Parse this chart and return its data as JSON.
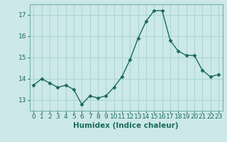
{
  "x": [
    0,
    1,
    2,
    3,
    4,
    5,
    6,
    7,
    8,
    9,
    10,
    11,
    12,
    13,
    14,
    15,
    16,
    17,
    18,
    19,
    20,
    21,
    22,
    23
  ],
  "y": [
    13.7,
    14.0,
    13.8,
    13.6,
    13.7,
    13.5,
    12.8,
    13.2,
    13.1,
    13.2,
    13.6,
    14.1,
    14.9,
    15.9,
    16.7,
    17.2,
    17.2,
    15.8,
    15.3,
    15.1,
    15.1,
    14.4,
    14.1,
    14.2
  ],
  "line_color": "#1a6b5a",
  "marker": "D",
  "marker_size": 2.5,
  "bg_color": "#cce8e8",
  "grid_color": "#aad4d4",
  "xlabel": "Humidex (Indice chaleur)",
  "ylim": [
    12.5,
    17.5
  ],
  "xlim": [
    -0.5,
    23.5
  ],
  "yticks": [
    13,
    14,
    15,
    16,
    17
  ],
  "xticks": [
    0,
    1,
    2,
    3,
    4,
    5,
    6,
    7,
    8,
    9,
    10,
    11,
    12,
    13,
    14,
    15,
    16,
    17,
    18,
    19,
    20,
    21,
    22,
    23
  ],
  "tick_color": "#1a6b5a",
  "label_fontsize": 7.5,
  "tick_fontsize": 6.5,
  "spine_color": "#7ab0b0",
  "linewidth": 1.0
}
